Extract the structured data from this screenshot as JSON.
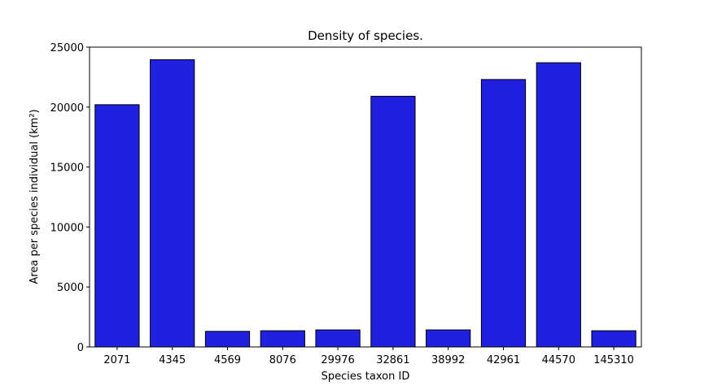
{
  "chart_data": {
    "type": "bar",
    "title": "Density of species.",
    "xlabel": "Species taxon ID",
    "ylabel": "Area per species individual (km²)",
    "categories": [
      "2071",
      "4345",
      "4569",
      "8076",
      "29976",
      "32861",
      "38992",
      "42961",
      "44570",
      "145310"
    ],
    "values": [
      20200,
      23950,
      1300,
      1350,
      1420,
      20900,
      1420,
      22300,
      23700,
      1350
    ],
    "ylim": [
      0,
      25000
    ],
    "yticks": [
      0,
      5000,
      10000,
      15000,
      20000,
      25000
    ],
    "bar_color": "#2020e0",
    "edge_color": "#000000",
    "grid": false
  }
}
